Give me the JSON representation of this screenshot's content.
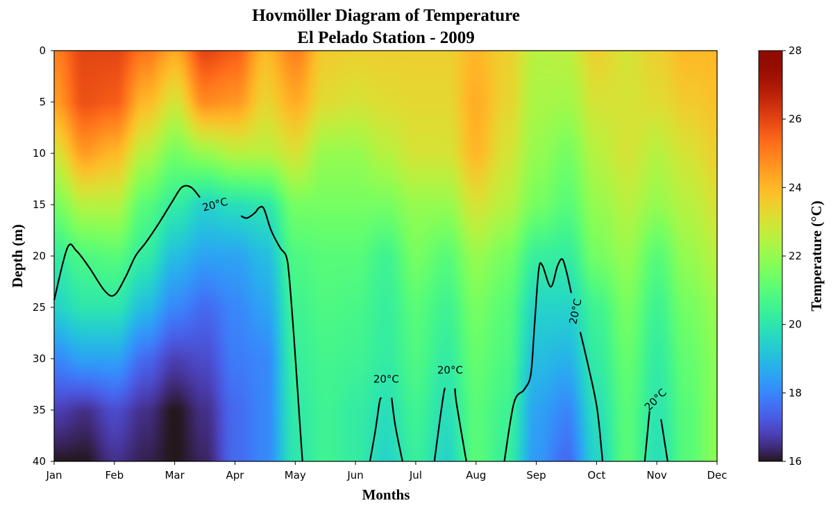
{
  "chart_data": {
    "type": "heatmap",
    "title": "Hovmöller Diagram of Temperature",
    "subtitle": "El Pelado Station - 2009",
    "xlabel": "Months",
    "ylabel": "Depth (m)",
    "colorbar_label": "Temperature (°C)",
    "colormap": "turbo",
    "clim": [
      16,
      28
    ],
    "colorbar_ticks": [
      "16",
      "18",
      "20",
      "22",
      "24",
      "26",
      "28"
    ],
    "x_ticks": [
      "Jan",
      "Feb",
      "Mar",
      "Apr",
      "May",
      "Jun",
      "Jul",
      "Aug",
      "Sep",
      "Oct",
      "Nov",
      "Dec"
    ],
    "xlim": [
      0,
      11
    ],
    "y_ticks": [
      "0",
      "5",
      "10",
      "15",
      "20",
      "25",
      "30",
      "35",
      "40"
    ],
    "ylim": [
      40,
      0
    ],
    "x_months": [
      0,
      0.5,
      1,
      1.5,
      2,
      2.5,
      3,
      3.5,
      4,
      4.5,
      5,
      5.5,
      6,
      6.5,
      7,
      7.5,
      8,
      8.5,
      9,
      9.5,
      10,
      10.5,
      11
    ],
    "depths": [
      0,
      5,
      10,
      15,
      20,
      25,
      30,
      35,
      40
    ],
    "temperature": [
      [
        25,
        26,
        26,
        25.2,
        24.3,
        26,
        25.6,
        24,
        25,
        23.6,
        23.5,
        23.5,
        23.5,
        23.5,
        24,
        23.5,
        22.5,
        22.6,
        23.5,
        23,
        23.5,
        24,
        24
      ],
      [
        24.5,
        25.8,
        25.6,
        24,
        23,
        24.8,
        24.6,
        23.4,
        24.2,
        23.2,
        23,
        23.2,
        23.3,
        23.3,
        24.2,
        23.4,
        22.3,
        22.2,
        23,
        23,
        23.2,
        23.6,
        23.8
      ],
      [
        23,
        24.5,
        24,
        22.5,
        21.5,
        22,
        22.5,
        22.5,
        23,
        22,
        22,
        22.5,
        23,
        23,
        24,
        23,
        22,
        21.5,
        22.5,
        23,
        22.5,
        23,
        23.5
      ],
      [
        21.5,
        22.5,
        22.5,
        21,
        20.2,
        19.5,
        19.8,
        20,
        21.5,
        21.5,
        21.5,
        21.5,
        22,
        22,
        23,
        22.5,
        21.5,
        21,
        22,
        22.5,
        22,
        22.5,
        23
      ],
      [
        20.2,
        20.8,
        21,
        20.2,
        19,
        18.5,
        18.5,
        19,
        20.8,
        21,
        21,
        20.5,
        21.5,
        21,
        22,
        21.5,
        20.3,
        20.2,
        21.5,
        22,
        21,
        22,
        22.5
      ],
      [
        19.5,
        20,
        20,
        19,
        18,
        17.5,
        18,
        18.5,
        20.5,
        20.8,
        20.7,
        20.3,
        21,
        20.5,
        21.5,
        21,
        19.5,
        19.5,
        20.5,
        21.5,
        20.5,
        21.5,
        22
      ],
      [
        18,
        18.5,
        18.5,
        17.5,
        16.8,
        17,
        17.8,
        18,
        20.3,
        20.6,
        20.5,
        20.2,
        20.8,
        20.2,
        21.2,
        20.8,
        19,
        18.8,
        20.2,
        21.2,
        20.2,
        21.2,
        21.8
      ],
      [
        16.8,
        16.5,
        17,
        16.5,
        16,
        16.5,
        17.5,
        18,
        20.1,
        20.5,
        20.2,
        19.8,
        20.5,
        19.8,
        21,
        20.5,
        18.5,
        18,
        19.8,
        21,
        20,
        21,
        21.8
      ],
      [
        16,
        16,
        16.5,
        16.2,
        16,
        16.3,
        17.5,
        18,
        20,
        20.5,
        20.2,
        19.5,
        20.3,
        19.5,
        21,
        20.3,
        18.3,
        17.5,
        19.5,
        21,
        19.8,
        21,
        21.8
      ]
    ],
    "contour": {
      "level": 20,
      "label": "20°C",
      "segments": [
        [
          [
            0,
            24.3
          ],
          [
            0.22,
            19.2
          ],
          [
            0.37,
            19.5
          ],
          [
            0.58,
            21.1
          ],
          [
            0.84,
            23.4
          ],
          [
            1.0,
            23.8
          ],
          [
            1.18,
            22.1
          ],
          [
            1.35,
            20
          ],
          [
            1.52,
            18.7
          ],
          [
            1.75,
            16.7
          ],
          [
            1.96,
            14.7
          ],
          [
            2.12,
            13.3
          ],
          [
            2.27,
            13.3
          ],
          [
            2.42,
            14.3
          ]
        ],
        [
          [
            3.1,
            16.1
          ],
          [
            3.2,
            16.3
          ],
          [
            3.33,
            15.8
          ],
          [
            3.4,
            15.3
          ],
          [
            3.48,
            15.4
          ],
          [
            3.6,
            17.5
          ],
          [
            3.75,
            19.2
          ],
          [
            3.85,
            20
          ],
          [
            3.9,
            22
          ],
          [
            3.98,
            28
          ],
          [
            4.05,
            34
          ],
          [
            4.12,
            40
          ]
        ],
        [
          [
            5.24,
            40
          ],
          [
            5.33,
            37
          ],
          [
            5.4,
            34.2
          ],
          [
            5.43,
            33.8
          ]
        ],
        [
          [
            5.6,
            33.8
          ],
          [
            5.66,
            36.5
          ],
          [
            5.78,
            40
          ]
        ],
        [
          [
            6.31,
            40
          ],
          [
            6.4,
            36
          ],
          [
            6.47,
            33.2
          ],
          [
            6.49,
            32.9
          ]
        ],
        [
          [
            6.65,
            32.9
          ],
          [
            6.68,
            34.5
          ],
          [
            6.84,
            40
          ]
        ],
        [
          [
            7.47,
            40
          ],
          [
            7.63,
            34.3
          ],
          [
            7.8,
            33
          ],
          [
            7.91,
            31.5
          ],
          [
            7.97,
            26.8
          ],
          [
            8.04,
            21.4
          ],
          [
            8.1,
            20.9
          ],
          [
            8.24,
            23
          ],
          [
            8.35,
            21
          ],
          [
            8.43,
            20.3
          ],
          [
            8.5,
            21.5
          ],
          [
            8.58,
            23.6
          ]
        ],
        [
          [
            8.73,
            27.4
          ],
          [
            8.87,
            30.9
          ],
          [
            9.01,
            34.9
          ],
          [
            9.1,
            40
          ]
        ],
        [
          [
            9.8,
            40
          ],
          [
            9.88,
            35.1
          ]
        ],
        [
          [
            10.07,
            35.9
          ],
          [
            10.18,
            40
          ]
        ]
      ],
      "labels": [
        {
          "x": 2.67,
          "depth": 15,
          "angle": -15
        },
        {
          "x": 5.51,
          "depth": 32,
          "angle": 0
        },
        {
          "x": 6.57,
          "depth": 31.1,
          "angle": 0
        },
        {
          "x": 8.65,
          "depth": 25.4,
          "angle": -78
        },
        {
          "x": 9.98,
          "depth": 34,
          "angle": -45
        }
      ]
    }
  }
}
